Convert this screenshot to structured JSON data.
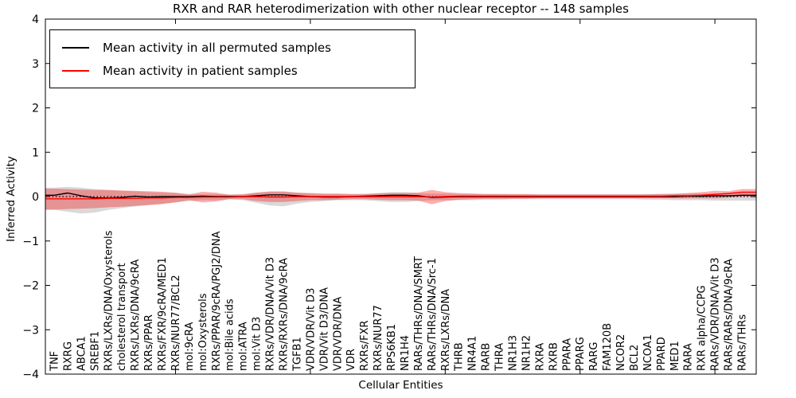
{
  "chart_data": {
    "type": "line",
    "title": "RXR and RAR heterodimerization with other nuclear receptor -- 148 samples",
    "xlabel": "Cellular Entities",
    "ylabel": "Inferred Activity",
    "ylim": [
      -4,
      4
    ],
    "grid": false,
    "legend_position": "upper left",
    "yticks": [
      {
        "value": 4,
        "label": "4"
      },
      {
        "value": 3,
        "label": "3"
      },
      {
        "value": 2,
        "label": "2"
      },
      {
        "value": 1,
        "label": "1"
      },
      {
        "value": 0,
        "label": "0"
      },
      {
        "value": -1,
        "label": "−1"
      },
      {
        "value": -2,
        "label": "−2"
      },
      {
        "value": -3,
        "label": "−3"
      },
      {
        "value": -4,
        "label": "−4"
      }
    ],
    "x_major_tick_indices": [
      9,
      19,
      29,
      39,
      49
    ],
    "categories": [
      "TNF",
      "RXRG",
      "ABCA1",
      "SREBF1",
      "RXRs/LXRs/DNA/Oxysterols",
      "cholesterol transport",
      "RXRs/LXRs/DNA/9cRA",
      "RXRs/PPAR",
      "RXRs/FXR/9cRA/MED1",
      "RXRs/NUR77/BCL2",
      "mol:9cRA",
      "mol:Oxysterols",
      "RXRs/PPAR/9cRA/PGJ2/DNA",
      "mol:Bile acids",
      "mol:ATRA",
      "mol:Vit D3",
      "RXRs/VDR/DNA/Vit D3",
      "RXRs/RXRs/DNA/9cRA",
      "TGFB1",
      "VDR/VDR/Vit D3",
      "VDR/Vit D3/DNA",
      "VDR/VDR/DNA",
      "VDR",
      "RXRs/FXR",
      "RXRs/NUR77",
      "RPS6KB1",
      "NR1H4",
      "RARs/THRs/DNA/SMRT",
      "RARs/THRs/DNA/Src-1",
      "RXRs/LXRs/DNA",
      "THRB",
      "NR4A1",
      "RARB",
      "THRA",
      "NR1H3",
      "NR1H2",
      "RXRA",
      "RXRB",
      "PPARA",
      "PPARG",
      "RARG",
      "FAM120B",
      "NCOR2",
      "BCL2",
      "NCOA1",
      "PPARD",
      "MED1",
      "RARA",
      "RXR alpha/CCPG",
      "RARs/VDR/DNA/Vit D3",
      "RARs/RARs/DNA/9cRA",
      "RARs/THRs"
    ],
    "series": [
      {
        "name": "Mean activity in all permuted samples",
        "color": "#000000",
        "values": [
          0.03,
          0.08,
          0.02,
          -0.03,
          -0.03,
          -0.02,
          0.01,
          -0.01,
          0.0,
          0.0,
          0.0,
          0.01,
          0.0,
          0.0,
          0.0,
          0.02,
          0.04,
          0.04,
          0.02,
          0.0,
          -0.01,
          -0.01,
          0.0,
          0.01,
          0.02,
          0.03,
          0.03,
          0.02,
          -0.02,
          -0.01,
          0.0,
          0.0,
          0.0,
          0.0,
          0.0,
          0.0,
          0.0,
          0.0,
          0.0,
          0.0,
          0.0,
          0.0,
          0.0,
          0.0,
          0.0,
          0.0,
          0.0,
          0.01,
          0.01,
          0.02,
          0.02,
          0.03
        ]
      },
      {
        "name": "Mean activity in patient samples",
        "color": "#ff0000",
        "values": [
          -0.05,
          -0.05,
          -0.05,
          -0.05,
          -0.04,
          -0.04,
          -0.04,
          -0.03,
          -0.03,
          -0.02,
          -0.02,
          -0.01,
          -0.01,
          -0.01,
          0.0,
          0.0,
          -0.01,
          -0.01,
          0.0,
          0.0,
          0.0,
          0.0,
          0.0,
          0.0,
          0.0,
          0.0,
          0.0,
          0.0,
          -0.01,
          0.0,
          0.01,
          0.01,
          0.01,
          0.01,
          0.01,
          0.01,
          0.01,
          0.01,
          0.01,
          0.01,
          0.01,
          0.01,
          0.01,
          0.01,
          0.01,
          0.01,
          0.02,
          0.02,
          0.03,
          0.05,
          0.07,
          0.1
        ]
      }
    ],
    "bands": [
      {
        "name": "permuted-samples-std-band",
        "color": "rgba(128,128,128,0.30)",
        "upper": [
          0.2,
          0.22,
          0.2,
          0.17,
          0.15,
          0.13,
          0.12,
          0.1,
          0.09,
          0.08,
          0.06,
          0.06,
          0.06,
          0.05,
          0.06,
          0.09,
          0.12,
          0.12,
          0.09,
          0.07,
          0.06,
          0.06,
          0.06,
          0.06,
          0.08,
          0.1,
          0.1,
          0.08,
          0.07,
          0.07,
          0.06,
          0.06,
          0.06,
          0.06,
          0.05,
          0.05,
          0.05,
          0.05,
          0.05,
          0.05,
          0.05,
          0.05,
          0.05,
          0.05,
          0.06,
          0.06,
          0.07,
          0.07,
          0.07,
          0.07,
          0.07,
          0.08
        ],
        "lower": [
          -0.3,
          -0.34,
          -0.38,
          -0.36,
          -0.3,
          -0.26,
          -0.22,
          -0.19,
          -0.16,
          -0.13,
          -0.1,
          -0.08,
          -0.08,
          -0.06,
          -0.08,
          -0.14,
          -0.2,
          -0.22,
          -0.16,
          -0.12,
          -0.1,
          -0.08,
          -0.08,
          -0.08,
          -0.1,
          -0.12,
          -0.12,
          -0.1,
          -0.08,
          -0.08,
          -0.08,
          -0.08,
          -0.07,
          -0.07,
          -0.06,
          -0.06,
          -0.06,
          -0.06,
          -0.06,
          -0.06,
          -0.06,
          -0.06,
          -0.06,
          -0.06,
          -0.07,
          -0.07,
          -0.08,
          -0.08,
          -0.08,
          -0.09,
          -0.09,
          -0.09
        ]
      },
      {
        "name": "patient-samples-std-band",
        "color": "rgba(255,0,0,0.32)",
        "upper": [
          0.18,
          0.17,
          0.16,
          0.15,
          0.15,
          0.14,
          0.13,
          0.12,
          0.11,
          0.09,
          0.05,
          0.11,
          0.09,
          0.04,
          0.05,
          0.09,
          0.11,
          0.11,
          0.09,
          0.08,
          0.07,
          0.07,
          0.06,
          0.06,
          0.07,
          0.08,
          0.08,
          0.09,
          0.15,
          0.1,
          0.08,
          0.07,
          0.06,
          0.06,
          0.06,
          0.06,
          0.05,
          0.05,
          0.05,
          0.05,
          0.05,
          0.05,
          0.05,
          0.05,
          0.05,
          0.06,
          0.06,
          0.08,
          0.1,
          0.13,
          0.12,
          0.17
        ],
        "lower": [
          -0.29,
          -0.28,
          -0.27,
          -0.26,
          -0.24,
          -0.23,
          -0.21,
          -0.19,
          -0.17,
          -0.13,
          -0.08,
          -0.13,
          -0.11,
          -0.06,
          -0.06,
          -0.1,
          -0.12,
          -0.12,
          -0.1,
          -0.08,
          -0.08,
          -0.07,
          -0.06,
          -0.06,
          -0.07,
          -0.08,
          -0.08,
          -0.09,
          -0.17,
          -0.1,
          -0.07,
          -0.06,
          -0.05,
          -0.05,
          -0.05,
          -0.05,
          -0.04,
          -0.04,
          -0.04,
          -0.04,
          -0.04,
          -0.04,
          -0.04,
          -0.04,
          -0.04,
          -0.04,
          -0.04,
          -0.04,
          -0.04,
          -0.04,
          -0.02,
          0.0
        ]
      }
    ],
    "zero_line": {
      "y": 0,
      "style": "dotted",
      "color": "#000000"
    },
    "legend": {
      "entries": [
        {
          "label": "Mean activity in all permuted samples",
          "color": "#000000"
        },
        {
          "label": "Mean activity in patient samples",
          "color": "#ff0000"
        }
      ]
    }
  }
}
